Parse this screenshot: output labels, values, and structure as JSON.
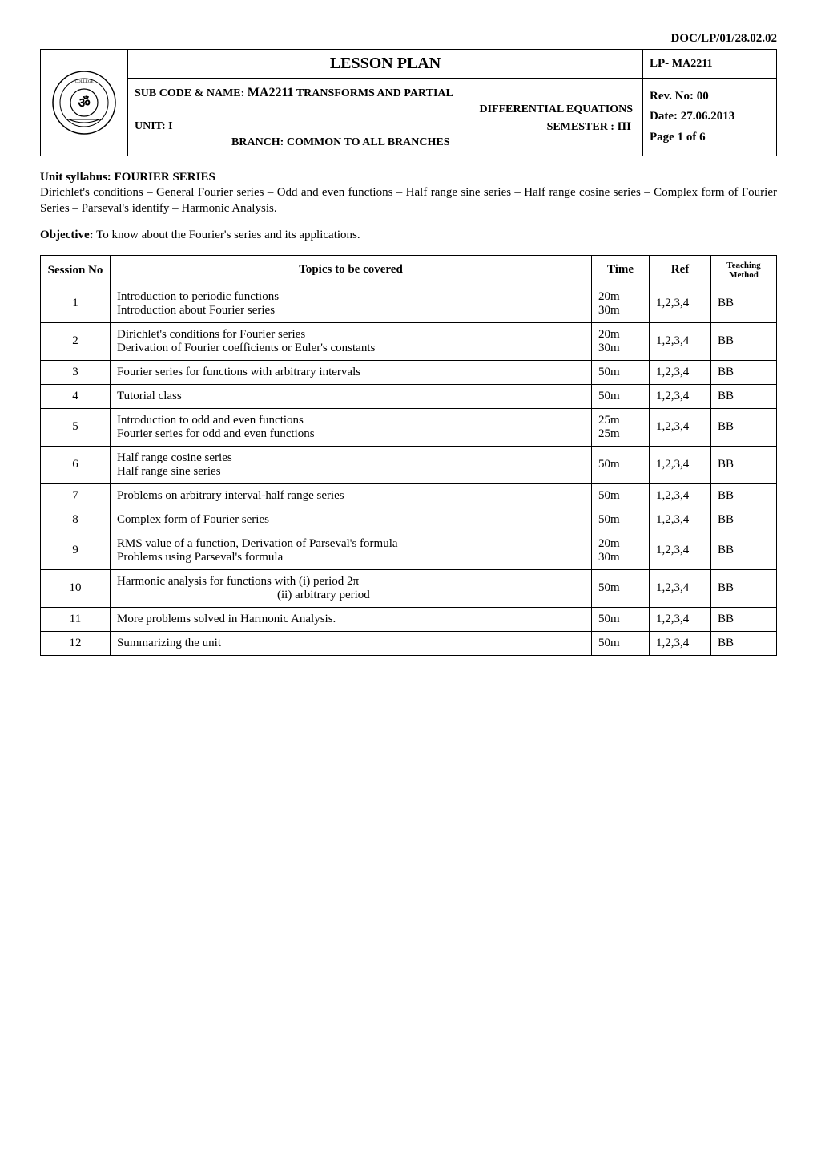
{
  "doc_code": "DOC/LP/01/28.02.02",
  "header": {
    "lesson_plan_title": "LESSON PLAN",
    "lp_label": "LP-",
    "lp_code": "MA2211",
    "subcode_prefix": "SUB CODE & NAME:",
    "subcode_value": "MA2211",
    "subcode_title": "TRANSFORMS AND PARTIAL",
    "subcode_title2": "DIFFERENTIAL EQUATIONS",
    "unit_label": "UNIT: I",
    "semester_label": "SEMESTER :",
    "semester_value": "III",
    "branch_line": "BRANCH: COMMON TO ALL BRANCHES",
    "rev_no": "Rev. No: 00",
    "date": "Date: 27.06.2013",
    "page": "Page   1  of 6"
  },
  "syllabus": {
    "heading": "Unit syllabus: FOURIER SERIES",
    "body": "Dirichlet's conditions – General Fourier series – Odd and even functions – Half range sine series – Half range cosine series – Complex form of Fourier Series – Parseval's identify – Harmonic Analysis."
  },
  "objective": {
    "label": "Objective:",
    "text": "To know about the Fourier's series and its applications."
  },
  "table": {
    "headers": {
      "session": "Session No",
      "topics": "Topics to be covered",
      "time": "Time",
      "ref": "Ref",
      "method": "Teaching Method"
    },
    "rows": [
      {
        "no": "1",
        "topic_a": "Introduction to periodic functions",
        "topic_b": "Introduction about Fourier series",
        "time_a": "20m",
        "time_b": "30m",
        "ref": "1,2,3,4",
        "method": "BB"
      },
      {
        "no": "2",
        "topic_a": "Dirichlet's  conditions for Fourier series",
        "topic_b": "Derivation of Fourier coefficients or Euler's constants",
        "time_a": "20m",
        "time_b": "30m",
        "ref": "1,2,3,4",
        "method": "BB"
      },
      {
        "no": "3",
        "topic_a": "Fourier series for functions with arbitrary intervals",
        "topic_b": "",
        "time_a": "50m",
        "time_b": "",
        "ref": "1,2,3,4",
        "method": "BB"
      },
      {
        "no": "4",
        "topic_a": "Tutorial class",
        "topic_b": "",
        "time_a": "50m",
        "time_b": "",
        "ref": "1,2,3,4",
        "method": "BB"
      },
      {
        "no": "5",
        "topic_a": "Introduction to odd and even functions",
        "topic_b": "Fourier series for odd and even functions",
        "time_a": "25m",
        "time_b": "25m",
        "ref": "1,2,3,4",
        "method": "BB"
      },
      {
        "no": "6",
        "topic_a": "Half range cosine series",
        "topic_b": "Half range sine series",
        "time_a": "50m",
        "time_b": "",
        "ref": "1,2,3,4",
        "method": "BB"
      },
      {
        "no": "7",
        "topic_a": "Problems on arbitrary interval-half range series",
        "topic_b": "",
        "time_a": "50m",
        "time_b": "",
        "ref": "1,2,3,4",
        "method": "BB"
      },
      {
        "no": "8",
        "topic_a": "Complex form of Fourier series",
        "topic_b": "",
        "time_a": "50m",
        "time_b": "",
        "ref": "1,2,3,4",
        "method": "BB"
      },
      {
        "no": "9",
        "topic_a": "RMS value of a function, Derivation of Parseval's formula",
        "topic_b": "Problems using Parseval's formula",
        "time_a": "20m",
        "time_b": "30m",
        "ref": "1,2,3,4",
        "method": "BB"
      },
      {
        "no": "10",
        "topic_a": "Harmonic analysis for functions with (i) period 2π",
        "topic_b_indented": "(ii) arbitrary period",
        "time_a": "50m",
        "time_b": "",
        "ref": "1,2,3,4",
        "method": "BB"
      },
      {
        "no": "11",
        "topic_a": "More problems solved in Harmonic Analysis.",
        "topic_b": "",
        "time_a": "50m",
        "time_b": "",
        "ref": "1,2,3,4",
        "method": "BB"
      },
      {
        "no": "12",
        "topic_a": "Summarizing the unit",
        "topic_b": "",
        "time_a": "50m",
        "time_b": "",
        "ref": "1,2,3,4",
        "method": "BB"
      }
    ]
  }
}
